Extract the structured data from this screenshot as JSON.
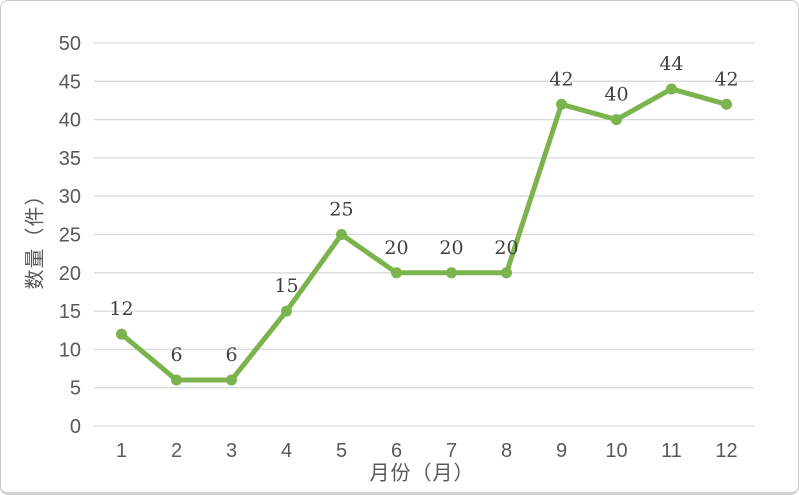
{
  "frame": {
    "background": "#FFFFFF",
    "border_color": "#CBCBCB"
  },
  "chart_data": {
    "type": "line",
    "title": "",
    "xlabel": "月份（月）",
    "ylabel": "数量（件）",
    "categories": [
      "1",
      "2",
      "3",
      "4",
      "5",
      "6",
      "7",
      "8",
      "9",
      "10",
      "11",
      "12"
    ],
    "values": [
      12,
      6,
      6,
      15,
      25,
      20,
      20,
      20,
      42,
      40,
      44,
      42
    ],
    "ylim": [
      0,
      50
    ],
    "ytick_step": 5,
    "yticks": [
      0,
      5,
      10,
      15,
      20,
      25,
      30,
      35,
      40,
      45,
      50
    ],
    "grid": "horizontal",
    "legend": "none",
    "data_labels_visible": true,
    "series_color": "#7BB34D",
    "gridline_color": "#D9D9D9",
    "tick_label_color": "#595959",
    "data_label_color": "#404040"
  }
}
